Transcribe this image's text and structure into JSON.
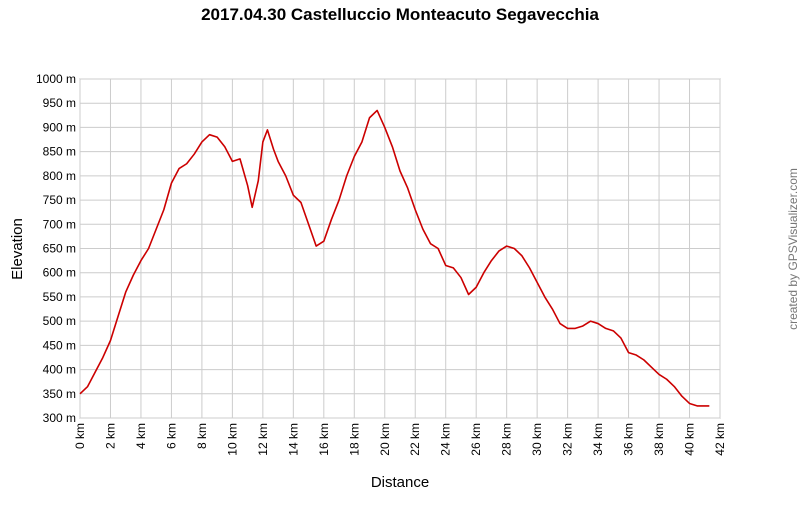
{
  "chart_data": {
    "type": "line",
    "title": "2017.04.30 Castelluccio Monteacuto Segavecchia",
    "x_label": "Distance",
    "y_label": "Elevation",
    "credit": "created by GPSVisualizer.com",
    "grid": true,
    "xlim": [
      0,
      42
    ],
    "ylim": [
      300,
      1000
    ],
    "xticks": [
      {
        "value": 0,
        "label": "0 km"
      },
      {
        "value": 2,
        "label": "2 km"
      },
      {
        "value": 4,
        "label": "4 km"
      },
      {
        "value": 6,
        "label": "6 km"
      },
      {
        "value": 8,
        "label": "8 km"
      },
      {
        "value": 10,
        "label": "10 km"
      },
      {
        "value": 12,
        "label": "12 km"
      },
      {
        "value": 14,
        "label": "14 km"
      },
      {
        "value": 16,
        "label": "16 km"
      },
      {
        "value": 18,
        "label": "18 km"
      },
      {
        "value": 20,
        "label": "20 km"
      },
      {
        "value": 22,
        "label": "22 km"
      },
      {
        "value": 24,
        "label": "24 km"
      },
      {
        "value": 26,
        "label": "26 km"
      },
      {
        "value": 28,
        "label": "28 km"
      },
      {
        "value": 30,
        "label": "30 km"
      },
      {
        "value": 32,
        "label": "32 km"
      },
      {
        "value": 34,
        "label": "34 km"
      },
      {
        "value": 36,
        "label": "36 km"
      },
      {
        "value": 38,
        "label": "38 km"
      },
      {
        "value": 40,
        "label": "40 km"
      },
      {
        "value": 42,
        "label": "42 km"
      }
    ],
    "yticks": [
      {
        "value": 300,
        "label": "300 m"
      },
      {
        "value": 350,
        "label": "350 m"
      },
      {
        "value": 400,
        "label": "400 m"
      },
      {
        "value": 450,
        "label": "450 m"
      },
      {
        "value": 500,
        "label": "500 m"
      },
      {
        "value": 550,
        "label": "550 m"
      },
      {
        "value": 600,
        "label": "600 m"
      },
      {
        "value": 650,
        "label": "650 m"
      },
      {
        "value": 700,
        "label": "700 m"
      },
      {
        "value": 750,
        "label": "750 m"
      },
      {
        "value": 800,
        "label": "800 m"
      },
      {
        "value": 850,
        "label": "850 m"
      },
      {
        "value": 900,
        "label": "900 m"
      },
      {
        "value": 950,
        "label": "950 m"
      },
      {
        "value": 1000,
        "label": "1000 m"
      }
    ],
    "series": [
      {
        "color": "#cc0000",
        "x": [
          0,
          0.5,
          1,
          1.5,
          2,
          2.5,
          3,
          3.5,
          4,
          4.5,
          5,
          5.5,
          6,
          6.5,
          7,
          7.5,
          8,
          8.5,
          9,
          9.5,
          10,
          10.5,
          11,
          11.3,
          11.7,
          12,
          12.3,
          12.7,
          13,
          13.5,
          14,
          14.5,
          15,
          15.5,
          16,
          16.5,
          17,
          17.5,
          18,
          18.5,
          19,
          19.5,
          20,
          20.5,
          21,
          21.5,
          22,
          22.5,
          23,
          23.5,
          24,
          24.5,
          25,
          25.5,
          26,
          26.5,
          27,
          27.5,
          28,
          28.5,
          29,
          29.5,
          30,
          30.5,
          31,
          31.5,
          32,
          32.5,
          33,
          33.5,
          34,
          34.5,
          35,
          35.5,
          36,
          36.5,
          37,
          37.5,
          38,
          38.5,
          39,
          39.5,
          40,
          40.5,
          41,
          41.3
        ],
        "values": [
          350,
          365,
          395,
          425,
          460,
          510,
          560,
          595,
          625,
          650,
          690,
          730,
          785,
          815,
          825,
          845,
          870,
          885,
          880,
          860,
          830,
          835,
          780,
          735,
          790,
          870,
          895,
          855,
          830,
          800,
          760,
          745,
          700,
          655,
          665,
          710,
          750,
          800,
          840,
          870,
          920,
          935,
          900,
          860,
          810,
          775,
          730,
          690,
          660,
          650,
          615,
          610,
          590,
          555,
          570,
          600,
          625,
          645,
          655,
          650,
          635,
          610,
          580,
          550,
          525,
          495,
          485,
          485,
          490,
          500,
          495,
          485,
          480,
          465,
          435,
          430,
          420,
          405,
          390,
          380,
          365,
          345,
          330,
          325,
          325,
          325
        ]
      }
    ]
  }
}
